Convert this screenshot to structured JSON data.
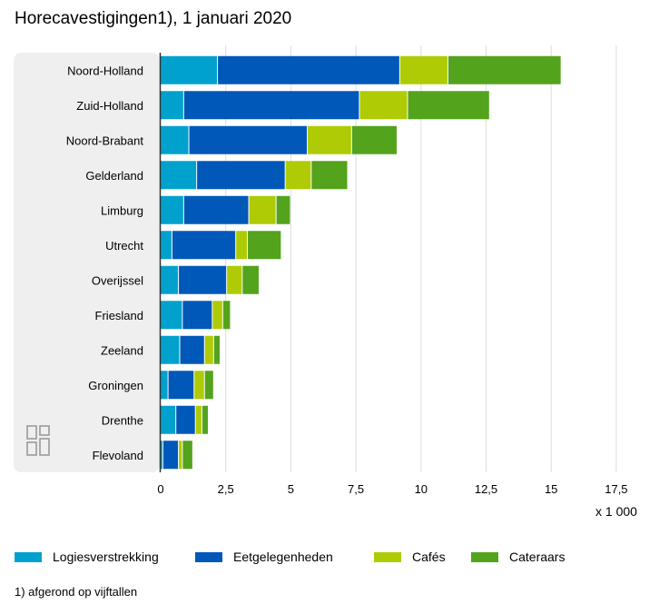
{
  "header": {
    "title": "Horecavestigingen1), 1 januari 2020"
  },
  "chart_data": {
    "type": "bar",
    "orientation": "horizontal",
    "stacked": true,
    "title": "Horecavestigingen1), 1 januari 2020",
    "categories": [
      "Noord-Holland",
      "Zuid-Holland",
      "Noord-Brabant",
      "Gelderland",
      "Limburg",
      "Utrecht",
      "Overijssel",
      "Friesland",
      "Zeeland",
      "Groningen",
      "Drenthe",
      "Flevoland"
    ],
    "series": [
      {
        "name": "Logiesverstrekking",
        "color": "#00a1cd",
        "values": [
          2.2,
          0.9,
          1.1,
          1.4,
          0.9,
          0.45,
          0.7,
          0.85,
          0.75,
          0.3,
          0.6,
          0.1
        ]
      },
      {
        "name": "Eetgelegenheden",
        "color": "#0058b8",
        "values": [
          7.0,
          6.75,
          4.55,
          3.4,
          2.5,
          2.45,
          1.85,
          1.15,
          0.95,
          1.0,
          0.75,
          0.6
        ]
      },
      {
        "name": "Cafés",
        "color": "#afcb05",
        "values": [
          1.85,
          1.85,
          1.7,
          1.0,
          1.05,
          0.45,
          0.6,
          0.4,
          0.35,
          0.4,
          0.25,
          0.15
        ]
      },
      {
        "name": "Cateraars",
        "color": "#53a31d",
        "values": [
          4.35,
          3.15,
          1.75,
          1.4,
          0.55,
          1.3,
          0.65,
          0.3,
          0.25,
          0.35,
          0.25,
          0.4
        ]
      }
    ],
    "xlim": [
      0,
      17.5
    ],
    "xticks": [
      "0",
      "2,5",
      "5",
      "7,5",
      "10",
      "12,5",
      "15",
      "17,5"
    ],
    "xtick_values": [
      0,
      2.5,
      5,
      7.5,
      10,
      12.5,
      15,
      17.5
    ],
    "unit_label": "x 1 000",
    "grid": true,
    "legend_position": "bottom"
  },
  "footnote": "1) afgerond op vijftallen"
}
